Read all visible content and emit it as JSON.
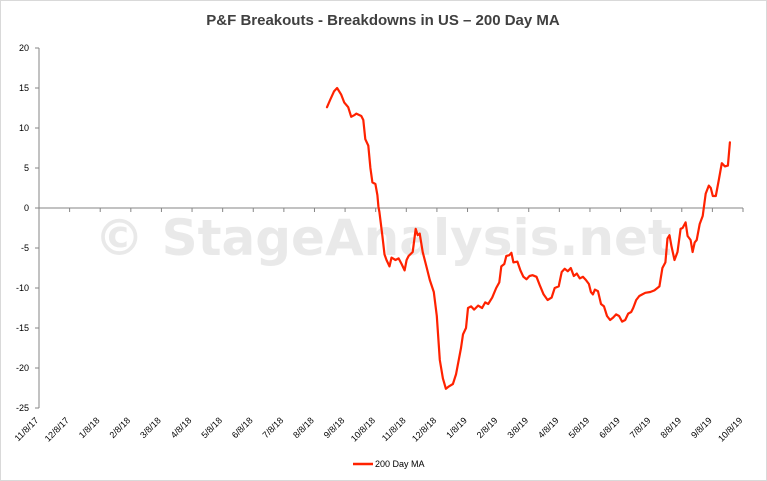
{
  "chart_data": {
    "type": "line",
    "title": "P&F Breakouts - Breakdowns in US – 200 Day MA",
    "xlabel": "",
    "ylabel": "",
    "ylim": [
      -25,
      20
    ],
    "yticks": [
      20,
      15,
      10,
      5,
      0,
      -5,
      -10,
      -15,
      -20,
      -25
    ],
    "xlim": [
      "2017-11-08",
      "2019-10-08"
    ],
    "xtick_labels": [
      "11/8/17",
      "12/8/17",
      "1/8/18",
      "2/8/18",
      "3/8/18",
      "4/8/18",
      "5/8/18",
      "6/8/18",
      "7/8/18",
      "8/8/18",
      "9/8/18",
      "10/8/18",
      "11/8/18",
      "12/8/18",
      "1/8/19",
      "2/8/19",
      "3/8/19",
      "4/8/19",
      "5/8/19",
      "6/8/19",
      "7/8/19",
      "8/8/19",
      "9/8/19",
      "10/8/19"
    ],
    "grid": false,
    "legend_position": "bottom",
    "watermark": "© StageAnalysis.net",
    "series": [
      {
        "name": "200 Day MA",
        "color": "#ff2200",
        "points": [
          [
            "2018-08-21",
            12.6
          ],
          [
            "2018-08-24",
            13.5
          ],
          [
            "2018-08-28",
            14.6
          ],
          [
            "2018-08-31",
            15.0
          ],
          [
            "2018-09-04",
            14.2
          ],
          [
            "2018-09-07",
            13.2
          ],
          [
            "2018-09-11",
            12.6
          ],
          [
            "2018-09-14",
            11.4
          ],
          [
            "2018-09-17",
            11.6
          ],
          [
            "2018-09-19",
            11.8
          ],
          [
            "2018-09-24",
            11.5
          ],
          [
            "2018-09-26",
            11.0
          ],
          [
            "2018-09-28",
            8.6
          ],
          [
            "2018-10-01",
            7.8
          ],
          [
            "2018-10-03",
            5.0
          ],
          [
            "2018-10-05",
            3.2
          ],
          [
            "2018-10-08",
            3.0
          ],
          [
            "2018-10-10",
            1.6
          ],
          [
            "2018-10-11",
            0.2
          ],
          [
            "2018-10-12",
            -0.5
          ],
          [
            "2018-10-15",
            -3.5
          ],
          [
            "2018-10-17",
            -5.8
          ],
          [
            "2018-10-19",
            -6.5
          ],
          [
            "2018-10-22",
            -7.3
          ],
          [
            "2018-10-24",
            -6.2
          ],
          [
            "2018-10-28",
            -6.5
          ],
          [
            "2018-10-31",
            -6.3
          ],
          [
            "2018-11-03",
            -7.0
          ],
          [
            "2018-11-06",
            -7.8
          ],
          [
            "2018-11-08",
            -6.5
          ],
          [
            "2018-11-10",
            -6.0
          ],
          [
            "2018-11-14",
            -5.5
          ],
          [
            "2018-11-17",
            -2.6
          ],
          [
            "2018-11-19",
            -3.4
          ],
          [
            "2018-11-21",
            -3.2
          ],
          [
            "2018-11-24",
            -5.5
          ],
          [
            "2018-11-28",
            -7.5
          ],
          [
            "2018-12-01",
            -9.0
          ],
          [
            "2018-12-05",
            -10.5
          ],
          [
            "2018-12-08",
            -13.5
          ],
          [
            "2018-12-11",
            -19.0
          ],
          [
            "2018-12-14",
            -21.3
          ],
          [
            "2018-12-17",
            -22.6
          ],
          [
            "2018-12-20",
            -22.3
          ],
          [
            "2018-12-24",
            -22.0
          ],
          [
            "2018-12-27",
            -20.8
          ],
          [
            "2019-01-01",
            -17.5
          ],
          [
            "2019-01-03",
            -15.8
          ],
          [
            "2019-01-06",
            -15.0
          ],
          [
            "2019-01-08",
            -12.5
          ],
          [
            "2019-01-11",
            -12.3
          ],
          [
            "2019-01-14",
            -12.7
          ],
          [
            "2019-01-18",
            -12.2
          ],
          [
            "2019-01-22",
            -12.5
          ],
          [
            "2019-01-25",
            -11.8
          ],
          [
            "2019-01-28",
            -12.0
          ],
          [
            "2019-02-01",
            -11.2
          ],
          [
            "2019-02-05",
            -10.0
          ],
          [
            "2019-02-08",
            -9.3
          ],
          [
            "2019-02-10",
            -7.3
          ],
          [
            "2019-02-13",
            -7.0
          ],
          [
            "2019-02-15",
            -6.0
          ],
          [
            "2019-02-18",
            -5.9
          ],
          [
            "2019-02-20",
            -5.6
          ],
          [
            "2019-02-22",
            -6.8
          ],
          [
            "2019-02-26",
            -6.7
          ],
          [
            "2019-03-01",
            -7.8
          ],
          [
            "2019-03-04",
            -8.6
          ],
          [
            "2019-03-07",
            -8.9
          ],
          [
            "2019-03-10",
            -8.5
          ],
          [
            "2019-03-13",
            -8.4
          ],
          [
            "2019-03-17",
            -8.6
          ],
          [
            "2019-03-20",
            -9.6
          ],
          [
            "2019-03-24",
            -10.8
          ],
          [
            "2019-03-28",
            -11.5
          ],
          [
            "2019-04-01",
            -11.2
          ],
          [
            "2019-04-04",
            -10.0
          ],
          [
            "2019-04-08",
            -9.8
          ],
          [
            "2019-04-11",
            -8.0
          ],
          [
            "2019-04-14",
            -7.6
          ],
          [
            "2019-04-17",
            -7.9
          ],
          [
            "2019-04-20",
            -7.5
          ],
          [
            "2019-04-23",
            -8.5
          ],
          [
            "2019-04-26",
            -8.2
          ],
          [
            "2019-04-29",
            -8.8
          ],
          [
            "2019-05-02",
            -8.6
          ],
          [
            "2019-05-05",
            -9.0
          ],
          [
            "2019-05-08",
            -9.5
          ],
          [
            "2019-05-10",
            -10.5
          ],
          [
            "2019-05-12",
            -10.8
          ],
          [
            "2019-05-14",
            -10.2
          ],
          [
            "2019-05-17",
            -10.4
          ],
          [
            "2019-05-20",
            -12.0
          ],
          [
            "2019-05-23",
            -12.3
          ],
          [
            "2019-05-26",
            -13.5
          ],
          [
            "2019-05-29",
            -14.0
          ],
          [
            "2019-06-01",
            -13.7
          ],
          [
            "2019-06-04",
            -13.3
          ],
          [
            "2019-06-07",
            -13.5
          ],
          [
            "2019-06-10",
            -14.2
          ],
          [
            "2019-06-13",
            -14.0
          ],
          [
            "2019-06-16",
            -13.2
          ],
          [
            "2019-06-19",
            -13.0
          ],
          [
            "2019-06-21",
            -12.5
          ],
          [
            "2019-06-24",
            -11.5
          ],
          [
            "2019-06-27",
            -11.0
          ],
          [
            "2019-06-30",
            -10.8
          ],
          [
            "2019-07-03",
            -10.6
          ],
          [
            "2019-07-08",
            -10.5
          ],
          [
            "2019-07-12",
            -10.3
          ],
          [
            "2019-07-15",
            -10.0
          ],
          [
            "2019-07-17",
            -9.8
          ],
          [
            "2019-07-20",
            -7.5
          ],
          [
            "2019-07-23",
            -6.8
          ],
          [
            "2019-07-25",
            -3.8
          ],
          [
            "2019-07-27",
            -3.4
          ],
          [
            "2019-07-29",
            -4.8
          ],
          [
            "2019-08-01",
            -6.5
          ],
          [
            "2019-08-04",
            -5.5
          ],
          [
            "2019-08-07",
            -2.6
          ],
          [
            "2019-08-09",
            -2.5
          ],
          [
            "2019-08-12",
            -1.8
          ],
          [
            "2019-08-14",
            -3.5
          ],
          [
            "2019-08-17",
            -4.0
          ],
          [
            "2019-08-19",
            -5.5
          ],
          [
            "2019-08-21",
            -4.3
          ],
          [
            "2019-08-23",
            -4.0
          ],
          [
            "2019-08-26",
            -2.0
          ],
          [
            "2019-08-29",
            -1.0
          ],
          [
            "2019-09-01",
            1.8
          ],
          [
            "2019-09-04",
            2.8
          ],
          [
            "2019-09-06",
            2.5
          ],
          [
            "2019-09-08",
            1.5
          ],
          [
            "2019-09-11",
            1.5
          ],
          [
            "2019-09-14",
            3.5
          ],
          [
            "2019-09-17",
            5.6
          ],
          [
            "2019-09-20",
            5.2
          ],
          [
            "2019-09-23",
            5.3
          ],
          [
            "2019-09-25",
            8.2
          ]
        ]
      }
    ]
  }
}
